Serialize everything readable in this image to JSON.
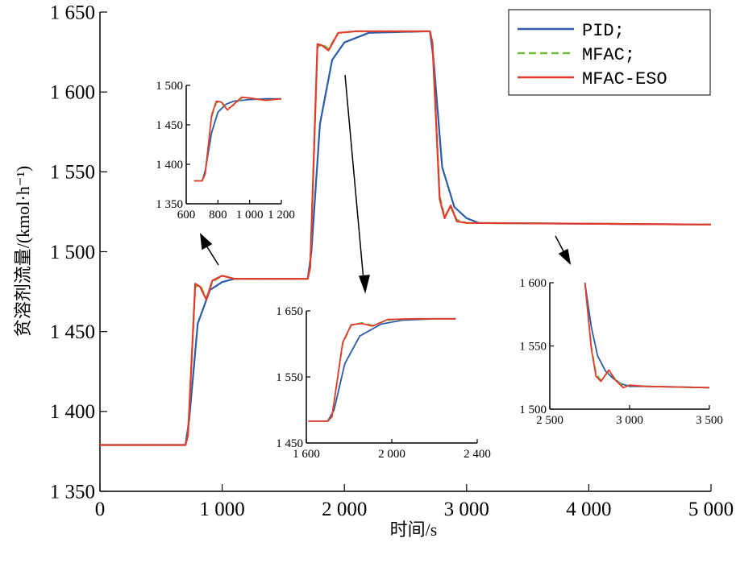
{
  "chart_data": {
    "type": "line",
    "xlabel": "时间/s",
    "ylabel": "贫溶剂流量/(kmol·h⁻¹)",
    "xlim": [
      0,
      5000
    ],
    "ylim": [
      1350,
      1650
    ],
    "x_ticks": [
      {
        "v": 0,
        "label": "0"
      },
      {
        "v": 1000,
        "label": "1 000"
      },
      {
        "v": 2000,
        "label": "2 000"
      },
      {
        "v": 3000,
        "label": "3 000"
      },
      {
        "v": 4000,
        "label": "4 000"
      },
      {
        "v": 5000,
        "label": "5 000"
      }
    ],
    "y_ticks": [
      {
        "v": 1350,
        "label": "1 350"
      },
      {
        "v": 1400,
        "label": "1 400"
      },
      {
        "v": 1450,
        "label": "1 450"
      },
      {
        "v": 1500,
        "label": "1 500"
      },
      {
        "v": 1550,
        "label": "1 550"
      },
      {
        "v": 1600,
        "label": "1 600"
      },
      {
        "v": 1650,
        "label": "1 650"
      }
    ],
    "legend": {
      "position": "top-right",
      "entries": [
        "PID;",
        "MFAC;",
        "MFAC-ESO"
      ]
    },
    "colors": {
      "PID": "#2a5caa",
      "MFAC": "#6fbf3b",
      "MFAC-ESO": "#e23a2c"
    },
    "series": [
      {
        "name": "PID",
        "x": [
          0,
          700,
          730,
          800,
          900,
          1000,
          1100,
          1700,
          1730,
          1800,
          1900,
          2000,
          2200,
          2700,
          2730,
          2800,
          2900,
          3000,
          3100,
          5000
        ],
        "y": [
          1379,
          1379,
          1395,
          1455,
          1476,
          1481,
          1483,
          1483,
          1500,
          1580,
          1620,
          1631,
          1637,
          1638,
          1620,
          1553,
          1528,
          1521,
          1518,
          1517
        ]
      },
      {
        "name": "MFAC",
        "x": [
          0,
          700,
          720,
          780,
          820,
          870,
          920,
          1000,
          1100,
          1700,
          1720,
          1780,
          1820,
          1870,
          1950,
          2100,
          2700,
          2720,
          2780,
          2820,
          2870,
          2920,
          3000,
          5000
        ],
        "y": [
          1379,
          1379,
          1385,
          1478,
          1479,
          1471,
          1481,
          1485,
          1483,
          1483,
          1490,
          1628,
          1630,
          1627,
          1637,
          1638,
          1638,
          1631,
          1535,
          1522,
          1528,
          1520,
          1518,
          1517
        ]
      },
      {
        "name": "MFAC-ESO",
        "x": [
          0,
          700,
          720,
          780,
          820,
          870,
          920,
          1000,
          1100,
          1700,
          1720,
          1780,
          1820,
          1870,
          1950,
          2100,
          2700,
          2720,
          2780,
          2820,
          2870,
          2920,
          3000,
          5000
        ],
        "y": [
          1379,
          1379,
          1385,
          1480,
          1478,
          1470,
          1482,
          1485,
          1483,
          1483,
          1490,
          1630,
          1629,
          1626,
          1637,
          1638,
          1638,
          1631,
          1533,
          1521,
          1529,
          1519,
          1518,
          1517
        ]
      }
    ],
    "insets": [
      {
        "xlim": [
          600,
          1200
        ],
        "ylim": [
          1350,
          1500
        ],
        "x_ticks": [
          {
            "v": 600,
            "label": "600"
          },
          {
            "v": 800,
            "label": "800"
          },
          {
            "v": 1000,
            "label": "1 000"
          },
          {
            "v": 1200,
            "label": "1 200"
          }
        ],
        "y_ticks": [
          {
            "v": 1350,
            "label": "1 350"
          },
          {
            "v": 1400,
            "label": "1 400"
          },
          {
            "v": 1450,
            "label": "1 450"
          },
          {
            "v": 1500,
            "label": "1 500"
          }
        ],
        "series": [
          {
            "name": "PID",
            "x": [
              650,
              700,
              720,
              760,
              800,
              850,
              900,
              1000,
              1100,
              1200
            ],
            "y": [
              1379,
              1379,
              1392,
              1440,
              1466,
              1476,
              1480,
              1482,
              1483,
              1483
            ]
          },
          {
            "name": "MFAC",
            "x": [
              650,
              700,
              720,
              760,
              790,
              820,
              860,
              900,
              950,
              1000,
              1100,
              1200
            ],
            "y": [
              1379,
              1379,
              1388,
              1460,
              1478,
              1480,
              1470,
              1475,
              1484,
              1484,
              1481,
              1483
            ]
          },
          {
            "name": "MFAC-ESO",
            "x": [
              650,
              700,
              720,
              760,
              790,
              820,
              860,
              900,
              950,
              1000,
              1100,
              1200
            ],
            "y": [
              1379,
              1379,
              1388,
              1462,
              1480,
              1479,
              1469,
              1476,
              1485,
              1484,
              1481,
              1483
            ]
          }
        ]
      },
      {
        "xlim": [
          1600,
          2400
        ],
        "ylim": [
          1450,
          1650
        ],
        "x_ticks": [
          {
            "v": 1600,
            "label": "1 600"
          },
          {
            "v": 2000,
            "label": "2 000"
          },
          {
            "v": 2400,
            "label": "2 400"
          }
        ],
        "y_ticks": [
          {
            "v": 1450,
            "label": "1 450"
          },
          {
            "v": 1550,
            "label": "1 550"
          },
          {
            "v": 1650,
            "label": "1 650"
          }
        ],
        "series": [
          {
            "name": "PID",
            "x": [
              1610,
              1700,
              1730,
              1780,
              1850,
              1950,
              2050,
              2200,
              2300
            ],
            "y": [
              1483,
              1483,
              1500,
              1570,
              1612,
              1630,
              1636,
              1638,
              1638
            ]
          },
          {
            "name": "MFAC",
            "x": [
              1610,
              1700,
              1720,
              1770,
              1810,
              1860,
              1910,
              1980,
              2100,
              2300
            ],
            "y": [
              1483,
              1483,
              1490,
              1600,
              1628,
              1632,
              1628,
              1636,
              1638,
              1638
            ]
          },
          {
            "name": "MFAC-ESO",
            "x": [
              1610,
              1700,
              1720,
              1770,
              1810,
              1860,
              1910,
              1980,
              2100,
              2300
            ],
            "y": [
              1483,
              1483,
              1490,
              1602,
              1629,
              1631,
              1627,
              1637,
              1638,
              1638
            ]
          }
        ]
      },
      {
        "xlim": [
          2500,
          3500
        ],
        "ylim": [
          1500,
          1600
        ],
        "x_ticks": [
          {
            "v": 2500,
            "label": "2 500"
          },
          {
            "v": 3000,
            "label": "3 000"
          },
          {
            "v": 3500,
            "label": "3 500"
          }
        ],
        "y_ticks": [
          {
            "v": 1500,
            "label": "1 500"
          },
          {
            "v": 1550,
            "label": "1 550"
          },
          {
            "v": 1600,
            "label": "1 600"
          }
        ],
        "series": [
          {
            "name": "PID",
            "x": [
              2720,
              2760,
              2800,
              2850,
              2900,
              2950,
              3000,
              3100,
              3500
            ],
            "y": [
              1600,
              1565,
              1542,
              1530,
              1524,
              1520,
              1518,
              1518,
              1517
            ]
          },
          {
            "name": "MFAC",
            "x": [
              2720,
              2760,
              2790,
              2820,
              2870,
              2910,
              2960,
              3000,
              3100,
              3500
            ],
            "y": [
              1600,
              1550,
              1528,
              1523,
              1530,
              1524,
              1518,
              1519,
              1518,
              1517
            ]
          },
          {
            "name": "MFAC-ESO",
            "x": [
              2720,
              2760,
              2790,
              2820,
              2870,
              2910,
              2960,
              3000,
              3100,
              3500
            ],
            "y": [
              1600,
              1548,
              1526,
              1522,
              1531,
              1523,
              1517,
              1519,
              1518,
              1517
            ]
          }
        ]
      }
    ]
  }
}
